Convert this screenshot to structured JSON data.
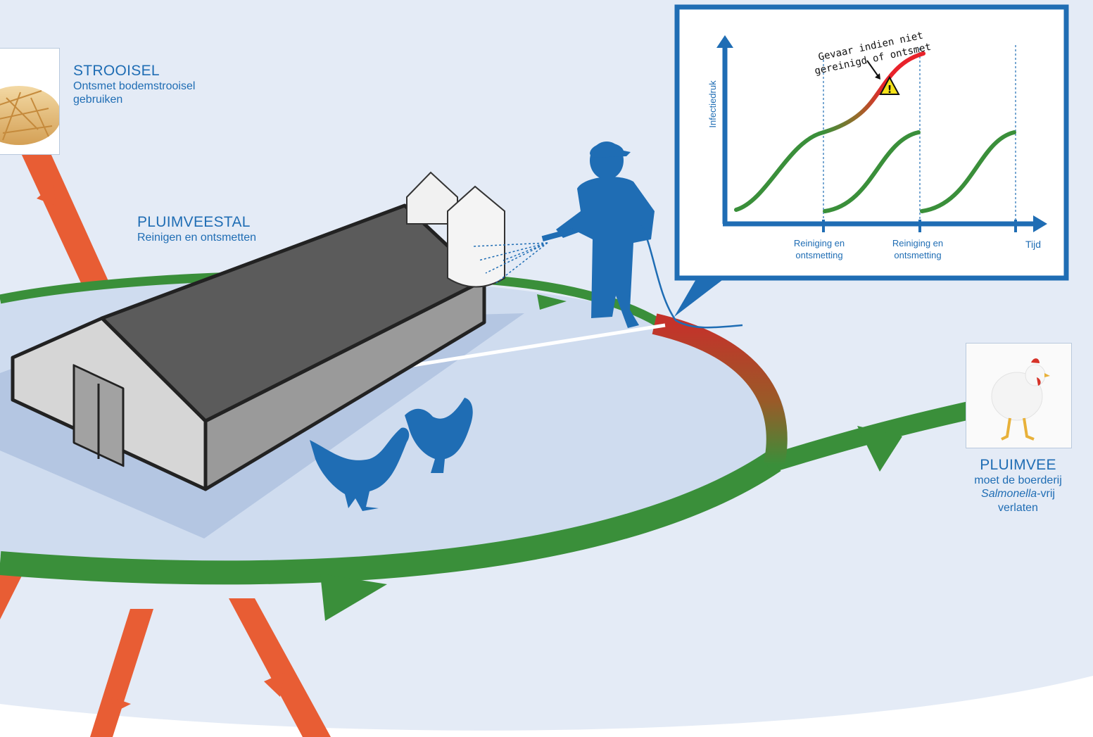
{
  "labels": {
    "strooisel": {
      "title": "STROOISEL",
      "line1": "Ontsmet bodemstrooisel",
      "line2": "gebruiken"
    },
    "pluimveestal": {
      "title": "PLUIMVEESTAL",
      "subtitle": "Reinigen en ontsmetten"
    },
    "pluimvee": {
      "title": "PLUIMVEE",
      "line1": "moet de boerderij",
      "italic": "Salmonella",
      "suffix": "-vrij",
      "line3": "verlaten"
    }
  },
  "chart_data": {
    "type": "line",
    "ylabel": "Infectiedruk",
    "xlabel": "Tijd",
    "x_ticks": [
      {
        "line1": "Reiniging en",
        "line2": "ontsmetting"
      },
      {
        "line1": "Reiniging en",
        "line2": "ontsmetting"
      }
    ],
    "annotation": {
      "line1": "Gevaar indien niet",
      "line2": "gereinigd of ontsmet"
    },
    "grid": false
  },
  "colors": {
    "brand_blue": "#1f6db4",
    "cycle_green": "#3a8f3a",
    "danger_red": "#e8222b",
    "input_orange": "#e85d34",
    "ground_blue": "#d7e2f1"
  },
  "icons": [
    "warning-icon",
    "farmer-figure",
    "hen-figure",
    "barn-figure",
    "silo-figure"
  ]
}
